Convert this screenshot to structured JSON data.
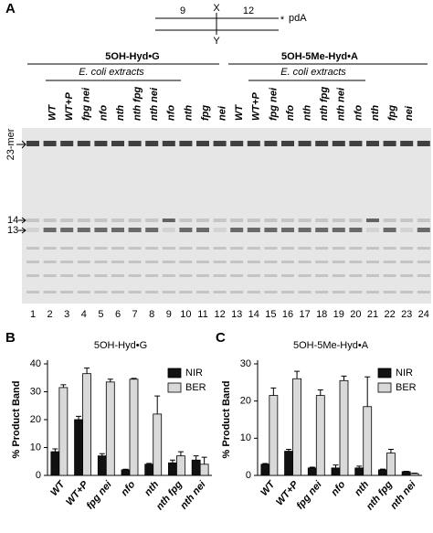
{
  "panel_a": {
    "label": "A",
    "strand_top": [
      "9",
      "X",
      "12",
      "*",
      "pdA"
    ],
    "strand_bottom": "Y",
    "group_1": "5OH-Hyd•G",
    "group_2": "5OH-5Me-Hyd•A",
    "extracts_1": "E. coli extracts",
    "extracts_2": "E. coli extracts",
    "lanes": [
      "WT",
      "WT+P",
      "fpg nei",
      "nfo",
      "nth",
      "nth fpg",
      "nth nei",
      "nfo",
      "nth",
      "fpg",
      "nei",
      "WT",
      "WT+P",
      "fpg nei",
      "nfo",
      "nth",
      "nth fpg",
      "nth nei",
      "nfo",
      "nth",
      "fpg",
      "nei"
    ],
    "lane_numbers": [
      "1",
      "2",
      "3",
      "4",
      "5",
      "6",
      "7",
      "8",
      "9",
      "10",
      "11",
      "12",
      "13",
      "14",
      "15",
      "16",
      "17",
      "18",
      "19",
      "20",
      "21",
      "22",
      "23",
      "24"
    ],
    "band_labels": [
      "23-mer",
      "14",
      "13"
    ]
  },
  "chart_data": [
    {
      "type": "bar",
      "panel": "B",
      "title": "5OH-Hyd•G",
      "ylabel": "% Product Band",
      "categories": [
        "WT",
        "WT+P",
        "fpg nei",
        "nfo",
        "nth",
        "nth fpg",
        "nth nei"
      ],
      "series": [
        {
          "name": "NIR",
          "color": "#111111",
          "values": [
            8.5,
            20,
            7,
            2,
            4,
            4.5,
            5.5
          ],
          "errors": [
            1,
            1.2,
            0.8,
            0.2,
            0.3,
            1,
            1.5
          ]
        },
        {
          "name": "BER",
          "color": "#d9d9d9",
          "values": [
            31.5,
            36.5,
            33.5,
            34.5,
            22,
            7,
            4
          ],
          "errors": [
            1,
            2,
            1,
            0.3,
            6.5,
            1.5,
            2.5
          ]
        }
      ],
      "ylim": [
        0,
        40
      ],
      "yticks": [
        0,
        10,
        20,
        30,
        40
      ]
    },
    {
      "type": "bar",
      "panel": "C",
      "title": "5OH-5Me-Hyd•A",
      "ylabel": "% Product Band",
      "categories": [
        "WT",
        "WT+P",
        "fpg nei",
        "nfo",
        "nth",
        "nth fpg",
        "nth nei"
      ],
      "series": [
        {
          "name": "NIR",
          "color": "#111111",
          "values": [
            3,
            6.5,
            2,
            2,
            2,
            1.5,
            1
          ],
          "errors": [
            0.2,
            0.5,
            0.2,
            0.8,
            0.5,
            0.2,
            0.1
          ]
        },
        {
          "name": "BER",
          "color": "#d9d9d9",
          "values": [
            21.5,
            26,
            21.5,
            25.5,
            18.5,
            6,
            0.5
          ],
          "errors": [
            2,
            2,
            1.5,
            1.2,
            8,
            1,
            0.1
          ]
        }
      ],
      "ylim": [
        0,
        30
      ],
      "yticks": [
        0,
        10,
        20,
        30
      ]
    }
  ]
}
